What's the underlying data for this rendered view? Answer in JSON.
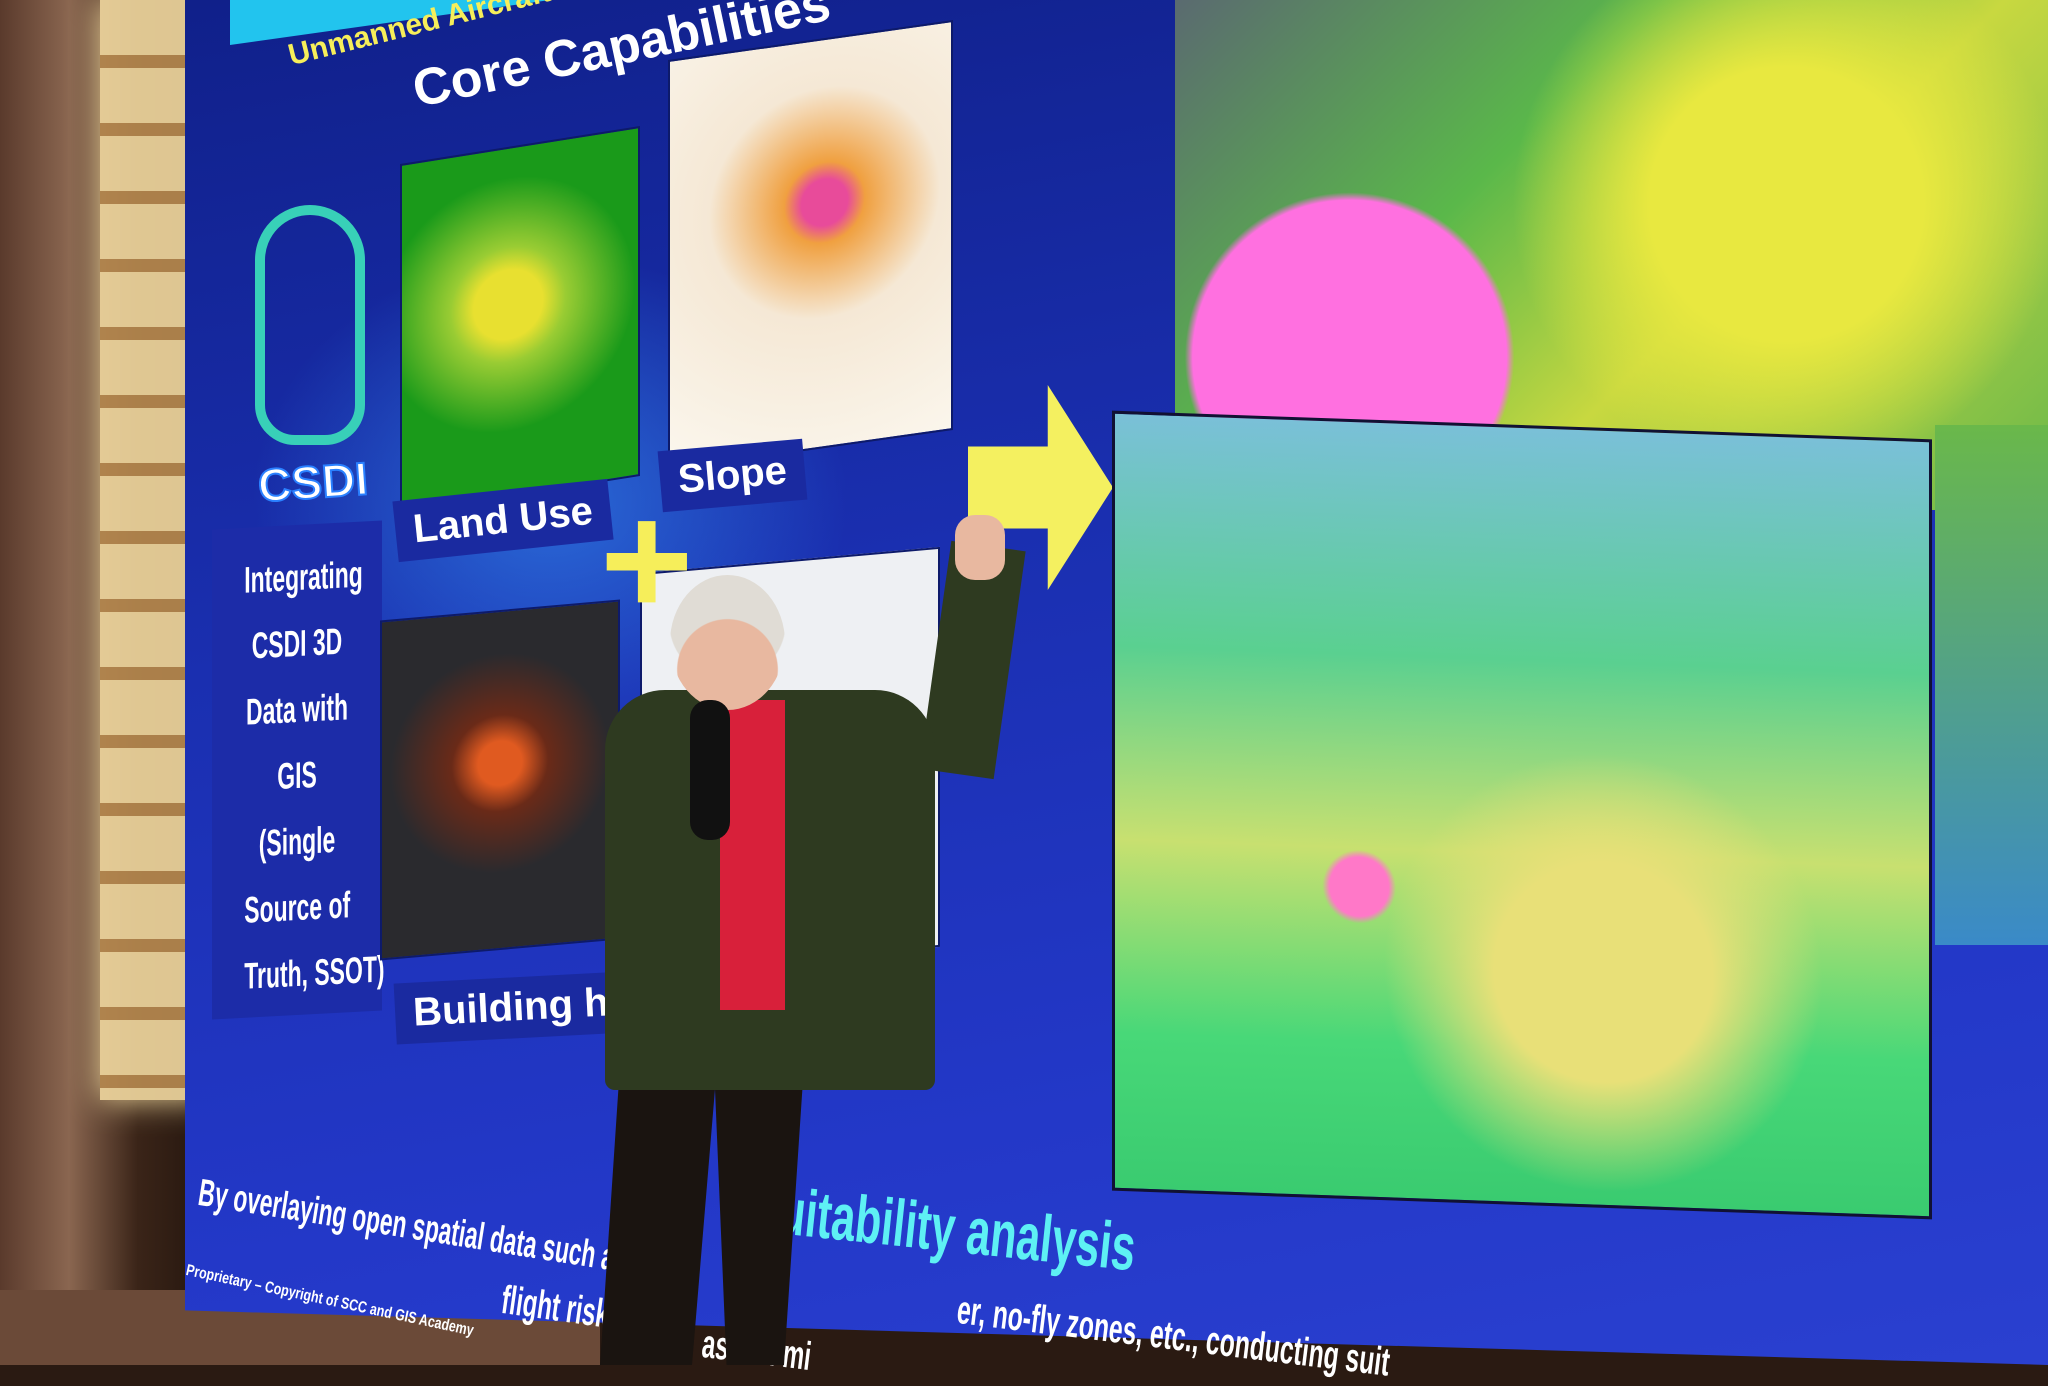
{
  "slide": {
    "subtitle": "Unmanned Aircraft Syste",
    "title": "Core Capabilities",
    "logo_text": "CSDI",
    "panels": {
      "land_use": "Land Use",
      "slope": "Slope",
      "building_height": "Building height"
    },
    "integrating_lines": [
      "Integrating",
      "CSDI 3D",
      "Data with",
      "GIS",
      "(Single",
      "Source of",
      "Truth, SSOT)"
    ],
    "bottom_heading": "suitability analysis",
    "bottom_body_line1": "By overlaying open spatial data such as",
    "bottom_body_line1_end": "er, no-fly zones, etc., conducting suit",
    "bottom_body_line2": "flight risk",
    "bottom_body_line2_end": "assi   in mi",
    "copyright": "Proprietary – Copyright of SCC and GIS Academy"
  },
  "colors": {
    "slide_bg": "#1a2fb0",
    "title": "#ffffff",
    "subtitle": "#f6ee5a",
    "heading": "#5ef0f4",
    "arrow": "#f4f060"
  }
}
